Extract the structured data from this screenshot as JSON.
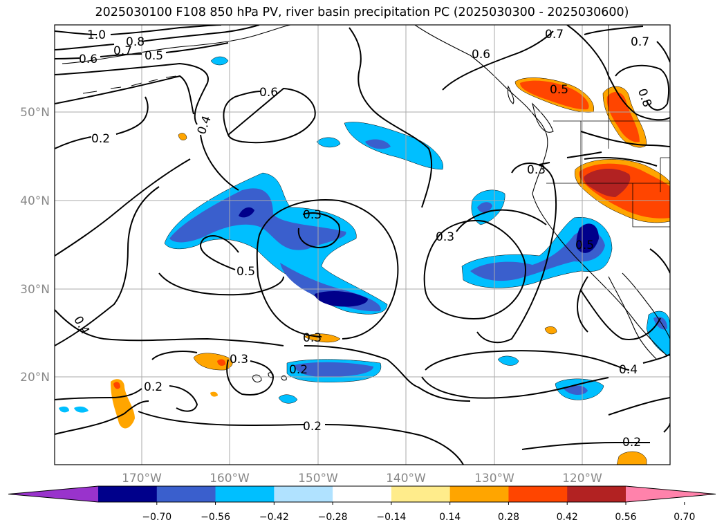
{
  "title": "2025030100 F108 850 hPa PV, river basin precipitation PC (2025030300 - 2025030600)",
  "map": {
    "lat_labels": [
      "50°N",
      "40°N",
      "30°N",
      "20°N"
    ],
    "lon_labels": [
      "170°W",
      "160°W",
      "150°W",
      "140°W",
      "130°W",
      "120°W"
    ],
    "contour_labels": [
      "1.0",
      "0.8",
      "0.7",
      "0.6",
      "0.5",
      "0.4",
      "0.2",
      "0.6",
      "0.5",
      "0.3",
      "0.3",
      "0.5",
      "0.3",
      "0.3",
      "0.2",
      "0.2",
      "0.2",
      "0.6",
      "0.7",
      "0.7",
      "0.8",
      "0.5",
      "0.3",
      "0.5",
      "0.4",
      "0.2"
    ]
  },
  "colorbar": {
    "colors": [
      "#9933cc",
      "#00008b",
      "#3a5fcd",
      "#00bfff",
      "#b0e2ff",
      "#ffffff",
      "#ffec8b",
      "#ffa500",
      "#ff4500",
      "#b22222",
      "#ff82ab"
    ],
    "ticks": [
      "−0.70",
      "−0.56",
      "−0.42",
      "−0.28",
      "−0.14",
      "0.14",
      "0.28",
      "0.42",
      "0.56",
      "0.70"
    ]
  }
}
